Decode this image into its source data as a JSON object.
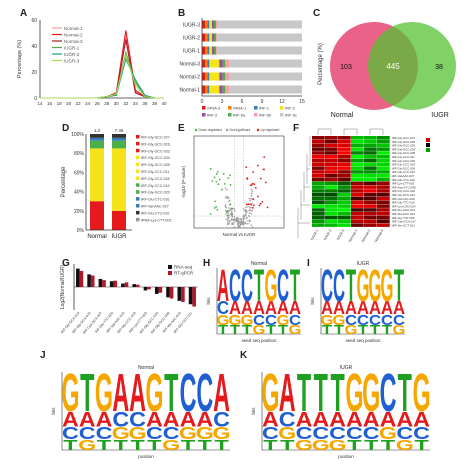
{
  "panel_labels": [
    "A",
    "B",
    "C",
    "D",
    "E",
    "F",
    "G",
    "H",
    "I",
    "J",
    "K"
  ],
  "colors": {
    "red": "#e41a1c",
    "yellow": "#f5e41b",
    "green": "#4daf4a",
    "blue": "#377eb8",
    "pink": "#f4a0a7",
    "gray": "#c8c8c8",
    "dark": "#333333",
    "heat_red": "#e00000",
    "heat_green": "#00a000"
  },
  "chart_data": [
    {
      "id": "A",
      "type": "line",
      "ylabel": "Percentage (%)",
      "x": [
        14,
        16,
        18,
        20,
        22,
        24,
        26,
        28,
        30,
        32,
        34,
        36,
        38,
        40
      ],
      "xticklabels": [
        "14",
        "16",
        "18",
        "20",
        "22",
        "24",
        "26",
        "28",
        "30",
        "32",
        "34",
        "36",
        "38",
        "40"
      ],
      "ylim": [
        0,
        60
      ],
      "yticks": [
        0,
        20,
        40,
        60
      ],
      "legend": [
        "Normal-1",
        "Normal-2",
        "Normal-3",
        "IUGR-1",
        "IUGR-2",
        "IUGR-3"
      ],
      "series": [
        {
          "name": "Normal-1",
          "color": "#f4a0a7",
          "values": [
            0,
            0,
            0,
            0,
            0,
            0,
            0,
            1,
            3,
            48,
            5,
            1,
            0,
            0
          ]
        },
        {
          "name": "Normal-2",
          "color": "#e41a1c",
          "values": [
            0,
            0,
            0,
            0,
            0,
            0,
            0,
            1,
            4,
            52,
            6,
            1,
            0,
            0
          ]
        },
        {
          "name": "Normal-3",
          "color": "#b2182b",
          "values": [
            0,
            0,
            0,
            0,
            0,
            0,
            0,
            1,
            3,
            45,
            4,
            1,
            0,
            0
          ]
        },
        {
          "name": "IUGR-1",
          "color": "#4daf4a",
          "values": [
            0,
            0,
            0,
            0,
            0,
            0,
            0,
            1,
            3,
            35,
            12,
            2,
            0,
            0
          ]
        },
        {
          "name": "IUGR-2",
          "color": "#1b9e77",
          "values": [
            0,
            0,
            0,
            0,
            0,
            0,
            0,
            1,
            2,
            30,
            14,
            2,
            0,
            0
          ]
        },
        {
          "name": "IUGR-3",
          "color": "#a6d854",
          "values": [
            0,
            0,
            0,
            0,
            0,
            0,
            0,
            1,
            3,
            33,
            10,
            1,
            0,
            0
          ]
        }
      ]
    },
    {
      "id": "B",
      "type": "bar",
      "orientation": "horizontal-stacked",
      "categories": [
        "IUGR-3",
        "IUGR-2",
        "IUGR-1",
        "Normal-3",
        "Normal-2",
        "Normal-1"
      ],
      "xticks": [
        0,
        3,
        6,
        9,
        12,
        15
      ],
      "legend": [
        "rRNA-5",
        "rRNA-1",
        "tRF-1",
        "tRF-2",
        "tRF-3",
        "tRF-5a",
        "tRF-5b",
        "tRF-5c"
      ],
      "series": [
        {
          "name": "rRNA-5",
          "color": "#e41a1c",
          "values": [
            0.5,
            0.5,
            0.5,
            0.5,
            0.5,
            0.5
          ]
        },
        {
          "name": "rRNA-1",
          "color": "#ff7f00",
          "values": [
            0.3,
            0.3,
            0.3,
            0.3,
            0.3,
            0.3
          ]
        },
        {
          "name": "tRF-1",
          "color": "#377eb8",
          "values": [
            0.3,
            0.3,
            0.3,
            0.3,
            0.3,
            0.3
          ]
        },
        {
          "name": "tRF-2",
          "color": "#f5e41b",
          "values": [
            0.4,
            0.4,
            0.4,
            1.5,
            1.5,
            1.5
          ]
        },
        {
          "name": "tRF-3",
          "color": "#984ea3",
          "values": [
            0.3,
            0.3,
            0.3,
            0.5,
            0.5,
            0.5
          ]
        },
        {
          "name": "tRF-5a",
          "color": "#4daf4a",
          "values": [
            0.3,
            0.3,
            0.3,
            0.4,
            0.4,
            0.4
          ]
        },
        {
          "name": "tRF-5b",
          "color": "#f4a0a7",
          "values": [
            0.2,
            0.2,
            0.2,
            0.6,
            0.6,
            0.6
          ]
        },
        {
          "name": "tRF-5c",
          "color": "#c8c8c8",
          "values": [
            12.7,
            12.7,
            12.7,
            10.9,
            10.9,
            10.9
          ]
        }
      ]
    },
    {
      "id": "C",
      "type": "venn",
      "sets": [
        "Normal",
        "IUGR"
      ],
      "values": {
        "only_a": 103,
        "both": 445,
        "only_b": 38
      },
      "ylabel": "Percentage (%)"
    },
    {
      "id": "D",
      "type": "bar",
      "orientation": "vertical-stacked",
      "categories": [
        "Normal",
        "IUGR"
      ],
      "ylabel": "Percentage",
      "yticks": [
        "0%",
        "20%",
        "40%",
        "60%",
        "80%",
        "100%"
      ],
      "top_labels": [
        "1.2",
        "7.48"
      ],
      "series": [
        {
          "name": "red",
          "color": "#e41a1c",
          "values": [
            30,
            20
          ]
        },
        {
          "name": "yellow",
          "color": "#f5e41b",
          "values": [
            55,
            65
          ]
        },
        {
          "name": "green",
          "color": "#4daf4a",
          "values": [
            8,
            8
          ]
        },
        {
          "name": "blue",
          "color": "#377eb8",
          "values": [
            3,
            3
          ]
        },
        {
          "name": "dark",
          "color": "#333333",
          "values": [
            4,
            4
          ]
        }
      ],
      "legend": [
        "tRF-Gly-GCC-027",
        "tRF-Gly-GCC-026",
        "tRF-Gly-GCC-033",
        "tRF-Gly-GCC-034",
        "tRF-Gly-GCC-035",
        "tRF-Gly-CCC-011",
        "tRF-Gly-CCC-018",
        "tRF-Gly-CCC-019",
        "tRF-Gly-GCC-020",
        "tRF-Glu-CTC-016",
        "tRF-Val-AAC-027",
        "tRF-Glu-CTC-010",
        "tRNA-Lys-CTT-003"
      ]
    },
    {
      "id": "E",
      "type": "scatter",
      "legend": [
        "Down regulated",
        "Not significant",
        "Up regulated"
      ],
      "xlabel": "Normal vs IUGR",
      "ylabel": "-log10 (P-value)",
      "xlim": [
        -10,
        10
      ],
      "ylim": [
        0,
        10
      ]
    },
    {
      "id": "F",
      "type": "heatmap",
      "rows": 24,
      "cols": 6,
      "col_labels": [
        "IUGR-1",
        "IUGR-2",
        "IUGR-3",
        "Normal-1",
        "Normal-2",
        "Normal-3"
      ],
      "row_labels": [
        "tRF-Gly-GCC-027",
        "tRF-Gly-GCC-026",
        "tRF-Gly-GCC-033",
        "tRF-Gly-GCC-034",
        "tRF-Gly-GCC-035",
        "tRF-Gly-CCC-011",
        "tRF-Gly-CCC-018",
        "tRF-Gly-CCC-019",
        "tRF-Gly-GCC-020",
        "tRF-Glu-CTC-016",
        "tRF-Val-AAC-027",
        "tRF-Glu-CTC-010",
        "tRF-Lys-CTT-003",
        "tRF-Asp-GTC-008",
        "tRF-Gly-CCC-002",
        "tRF-His-GTG-014",
        "tRF-Val-CAC-009",
        "tRF-Glu-TTC-015",
        "tRF-Leu-CAG-024",
        "tRF-Pro-AGG-012",
        "tRF-Ala-AGC-031",
        "tRF-Arg-TCT-006",
        "tRF-Cys-GCA-017",
        "tRF-Ser-GCT-021"
      ]
    },
    {
      "id": "G",
      "type": "bar",
      "ylabel": "Log2(Normal/IUGR)",
      "legend": [
        "RNA-seq",
        "RT-qPCR"
      ],
      "categories": [
        "tRF-Gly-GCA-013",
        "tRF-Gly-GCA-016",
        "tRF-Cys-GCA-007",
        "tRF-Glu-TTC-025",
        "tRF-Val-AAC-015",
        "tRF-Gly-CCC-019",
        "tRF-Lys-CTT-003",
        "tRF-Gly-GCC-034",
        "tRF-Gly-GCC-030",
        "tRF-Val-AAC-018",
        "tRF-Gly-CCC-011"
      ],
      "ylim": [
        -4,
        4
      ],
      "series": [
        {
          "name": "RNA-seq",
          "color": "#111111",
          "values": [
            3.2,
            2.2,
            1.4,
            1.0,
            0.6,
            0.5,
            -0.6,
            -1.2,
            -1.8,
            -2.4,
            -3.0
          ]
        },
        {
          "name": "RT-qPCR",
          "color": "#b2182b",
          "values": [
            2.8,
            2.0,
            1.2,
            1.1,
            0.8,
            0.4,
            -0.4,
            -1.0,
            -2.0,
            -2.6,
            -3.4
          ]
        }
      ]
    }
  ],
  "logos": [
    {
      "id": "H",
      "title": "Normal",
      "xlabel": "seed seq position",
      "ylabel": "bits",
      "letters": [
        "A",
        "C",
        "C",
        "T",
        "G",
        "C",
        "T"
      ]
    },
    {
      "id": "I",
      "title": "IUGR",
      "xlabel": "seed seq position",
      "ylabel": "bits",
      "letters": [
        "C",
        "C",
        "T",
        "G",
        "G",
        "G",
        "T"
      ]
    },
    {
      "id": "J",
      "title": "Normal",
      "xlabel": "position",
      "ylabel": "bits",
      "letters": [
        "G",
        "T",
        "G",
        "A",
        "A",
        "G",
        "T",
        "C",
        "C",
        "A"
      ]
    },
    {
      "id": "K",
      "title": "IUGR",
      "xlabel": "position",
      "ylabel": "bits",
      "letters": [
        "G",
        "A",
        "T",
        "T",
        "T",
        "G",
        "G",
        "C",
        "T",
        "G"
      ]
    }
  ]
}
